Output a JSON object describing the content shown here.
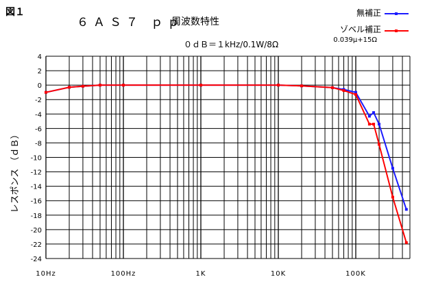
{
  "figure_label": "図１",
  "chart_data": {
    "type": "line",
    "title": "６ＡＳ７ ｐｐ",
    "subtitle": "周波数特性",
    "condition": "０ｄＢ＝１kHz/0.1W/8Ω",
    "ylabel": "レスポンス （ｄＢ）",
    "xlabel": "",
    "x_scale": "log",
    "xlim": [
      10,
      500000
    ],
    "ylim": [
      -24,
      4
    ],
    "y_ticks": [
      4,
      2,
      0,
      -2,
      -4,
      -6,
      -8,
      -10,
      -12,
      -14,
      -16,
      -18,
      -20,
      -22,
      -24
    ],
    "x_tick_labels": [
      {
        "value": 10,
        "label": "10Hz"
      },
      {
        "value": 100,
        "label": "100Hz"
      },
      {
        "value": 1000,
        "label": "1K"
      },
      {
        "value": 10000,
        "label": "10K"
      },
      {
        "value": 100000,
        "label": "100K"
      }
    ],
    "grid": true,
    "legend_position": "top-right",
    "series": [
      {
        "name": "無補正",
        "note": "",
        "color": "#1a1aff",
        "points": [
          [
            10,
            -1.0
          ],
          [
            20,
            -0.3
          ],
          [
            30,
            -0.15
          ],
          [
            50,
            0
          ],
          [
            100,
            0
          ],
          [
            1000,
            0
          ],
          [
            10000,
            0
          ],
          [
            20000,
            -0.1
          ],
          [
            50000,
            -0.35
          ],
          [
            70000,
            -0.6
          ],
          [
            100000,
            -1.0
          ],
          [
            150000,
            -4.3
          ],
          [
            170000,
            -3.8
          ],
          [
            200000,
            -5.4
          ],
          [
            300000,
            -11.5
          ],
          [
            450000,
            -17.2
          ]
        ]
      },
      {
        "name": "ゾベル補正",
        "note": "0.039μ+15Ω",
        "color": "#ff0000",
        "points": [
          [
            10,
            -1.0
          ],
          [
            20,
            -0.3
          ],
          [
            30,
            -0.15
          ],
          [
            50,
            0
          ],
          [
            100,
            0
          ],
          [
            1000,
            0
          ],
          [
            10000,
            0
          ],
          [
            20000,
            -0.1
          ],
          [
            50000,
            -0.35
          ],
          [
            70000,
            -0.75
          ],
          [
            100000,
            -1.3
          ],
          [
            150000,
            -5.4
          ],
          [
            170000,
            -5.4
          ],
          [
            200000,
            -8.2
          ],
          [
            300000,
            -15.5
          ],
          [
            450000,
            -21.8
          ]
        ]
      }
    ]
  }
}
